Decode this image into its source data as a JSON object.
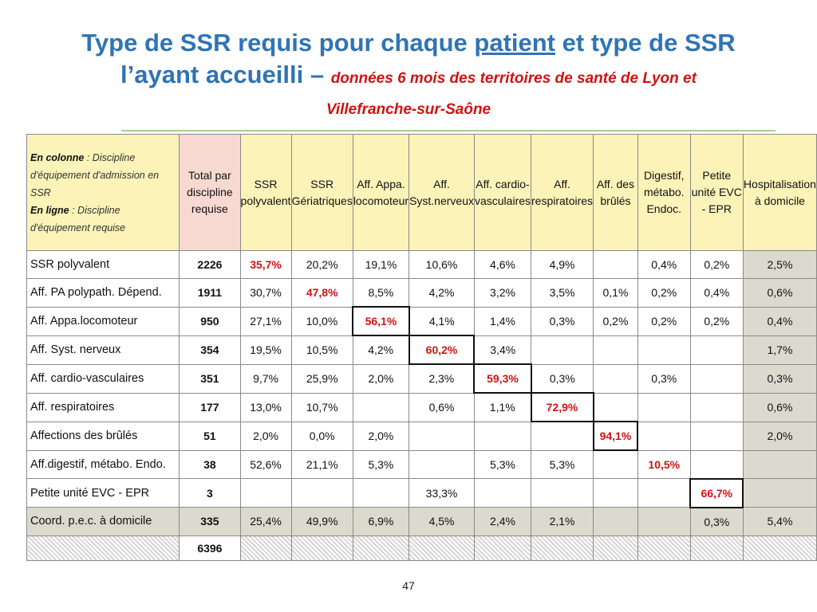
{
  "title": {
    "line1_a": "Type de SSR requis pour chaque ",
    "line1_u": "patient",
    "line1_b": " et type de SSR",
    "line2_a": "l’ayant accueilli – ",
    "line2_b": "données 6 mois des territoires de santé de Lyon et",
    "line3": "Villefranche-sur-Saône"
  },
  "table": {
    "corner": {
      "col_label": "En colonne",
      "col_text": " : Discipline d'équipement d'admission en SSR",
      "row_label": "En ligne",
      "row_text": " : Discipline d'équipement requise"
    },
    "headers": [
      "Total par discipline requise",
      "SSR polyvalent",
      "SSR Gériatriques",
      "Aff. Appa. locomoteur",
      "Aff. Syst.nerveux",
      "Aff. cardio-vasculaires",
      "Aff. respiratoires",
      "Aff. des brûlés",
      "Digestif, métabo. Endoc.",
      "Petite unité EVC - EPR",
      "Hospitalisation à domicile"
    ],
    "rows": [
      {
        "label": "SSR polyvalent",
        "total": "2226",
        "cells": [
          "35,7%",
          "20,2%",
          "19,1%",
          "10,6%",
          "4,6%",
          "4,9%",
          "",
          "0,4%",
          "0,2%",
          "2,5%"
        ]
      },
      {
        "label": "Aff. PA polypath. Dépend.",
        "total": "1911",
        "cells": [
          "30,7%",
          "47,8%",
          "8,5%",
          "4,2%",
          "3,2%",
          "3,5%",
          "0,1%",
          "0,2%",
          "0,4%",
          "0,6%"
        ]
      },
      {
        "label": "Aff. Appa.locomoteur",
        "total": "950",
        "cells": [
          "27,1%",
          "10,0%",
          "56,1%",
          "4,1%",
          "1,4%",
          "0,3%",
          "0,2%",
          "0,2%",
          "0,2%",
          "0,4%"
        ]
      },
      {
        "label": "Aff. Syst. nerveux",
        "total": "354",
        "cells": [
          "19,5%",
          "10,5%",
          "4,2%",
          "60,2%",
          "3,4%",
          "",
          "",
          "",
          "",
          "1,7%"
        ]
      },
      {
        "label": "Aff. cardio-vasculaires",
        "total": "351",
        "cells": [
          "9,7%",
          "25,9%",
          "2,0%",
          "2,3%",
          "59,3%",
          "0,3%",
          "",
          "0,3%",
          "",
          "0,3%"
        ]
      },
      {
        "label": "Aff. respiratoires",
        "total": "177",
        "cells": [
          "13,0%",
          "10,7%",
          "",
          "0,6%",
          "1,1%",
          "72,9%",
          "",
          "",
          "",
          "0,6%"
        ]
      },
      {
        "label": "Affections des brûlés",
        "total": "51",
        "cells": [
          "2,0%",
          "0,0%",
          "2,0%",
          "",
          "",
          "",
          "94,1%",
          "",
          "",
          "2,0%"
        ]
      },
      {
        "label": "Aff.digestif, métabo. Endo.",
        "total": "38",
        "cells": [
          "52,6%",
          "21,1%",
          "5,3%",
          "",
          "5,3%",
          "5,3%",
          "",
          "10,5%",
          "",
          ""
        ]
      },
      {
        "label": "Petite unité EVC - EPR",
        "total": "3",
        "cells": [
          "",
          "",
          "",
          "33,3%",
          "",
          "",
          "",
          "",
          "66,7%",
          ""
        ]
      },
      {
        "label": "Coord. p.e.c. à domicile",
        "total": "335",
        "cells": [
          "25,4%",
          "49,9%",
          "6,9%",
          "4,5%",
          "2,4%",
          "2,1%",
          "",
          "",
          "0,3%",
          "5,4%"
        ]
      }
    ],
    "grand_total": "6396"
  },
  "page_number": "47"
}
